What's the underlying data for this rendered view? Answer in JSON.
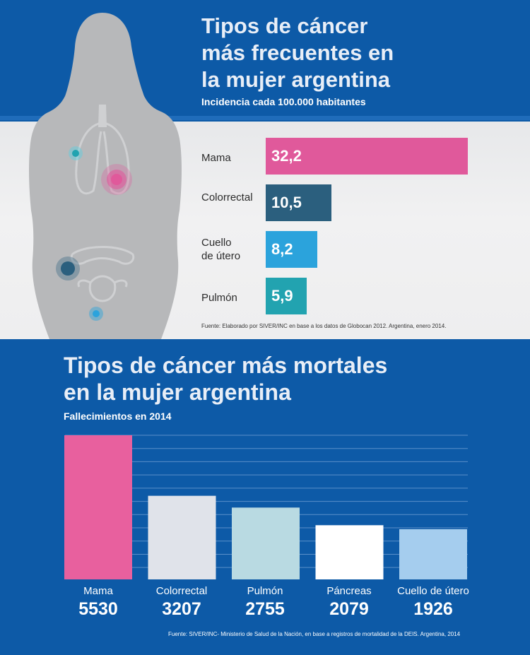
{
  "incidence": {
    "title_lines": [
      "Tipos de cáncer",
      "más frecuentes en",
      "la mujer argentina"
    ],
    "subtitle": "Incidencia cada 100.000 habitantes",
    "source": "Fuente: Elaborado por SIVER/INC en base a los datos de Globocan 2012. Argentina, enero 2014.",
    "items": [
      {
        "label_lines": [
          "Mama"
        ],
        "value": 32.2,
        "value_text": "32,2",
        "color": "#e0599b"
      },
      {
        "label_lines": [
          "Colorrectal"
        ],
        "value": 10.5,
        "value_text": "10,5",
        "color": "#2b5f7e"
      },
      {
        "label_lines": [
          "Cuello",
          "de útero"
        ],
        "value": 8.2,
        "value_text": "8,2",
        "color": "#2ba3dc"
      },
      {
        "label_lines": [
          "Pulmón"
        ],
        "value": 5.9,
        "value_text": "5,9",
        "color": "#22a3b0"
      }
    ]
  },
  "mortality": {
    "title_lines": [
      "Tipos de cáncer más mortales",
      "en la mujer argentina"
    ],
    "subtitle": "Fallecimientos en 2014",
    "source": "Fuente: SIVER/INC- Ministerio de Salud de la Nación, en base a registros de mortalidad de la DEIS. Argentina, 2014"
  },
  "chart_data": [
    {
      "type": "bar",
      "orientation": "horizontal",
      "title": "Tipos de cáncer más frecuentes en la mujer argentina",
      "subtitle": "Incidencia cada 100.000 habitantes",
      "categories": [
        "Mama",
        "Colorrectal",
        "Cuello de útero",
        "Pulmón"
      ],
      "values": [
        32.2,
        10.5,
        8.2,
        5.9
      ]
    },
    {
      "type": "bar",
      "orientation": "vertical",
      "title": "Tipos de cáncer más mortales en la mujer argentina",
      "subtitle": "Fallecimientos en 2014",
      "categories": [
        "Mama",
        "Colorrectal",
        "Pulmón",
        "Páncreas",
        "Cuello de útero"
      ],
      "values": [
        5530,
        3207,
        2755,
        2079,
        1926
      ],
      "value_texts": [
        "5530",
        "3207",
        "2755",
        "2079",
        "1926"
      ],
      "colors": [
        "#e8609e",
        "#e0e3ea",
        "#b9dae2",
        "#ffffff",
        "#a5cdee"
      ],
      "grid": true
    }
  ],
  "colors": {
    "background_blue": "#0d5aa7",
    "panel_gray": "#eeeeef",
    "silhouette": "#b7b8ba"
  }
}
